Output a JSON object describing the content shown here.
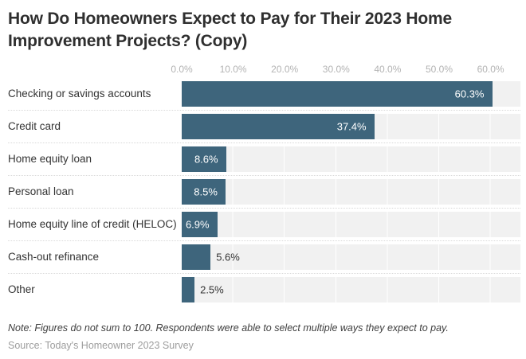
{
  "note": "Note: Figures do not sum to 100. Respondents were able to select multiple ways they expect to pay.",
  "source": "Source: Today's Homeowner 2023 Survey",
  "colors": {
    "bar": "#3e657c",
    "strip_background": "#f1f1f1",
    "gridline": "#ffffff",
    "title_text": "#2f2f2f",
    "axis_tick_text": "#b3b3b3",
    "category_text": "#333333",
    "value_label_inside": "#ffffff",
    "value_label_outside": "#333333",
    "note_text": "#3e3e3e",
    "source_text": "#9d9d9d"
  },
  "chart_data": {
    "type": "bar",
    "orientation": "horizontal",
    "title": "How Do Homeowners Expect to Pay for Their 2023 Home Improvement Projects? (Copy)",
    "categories": [
      "Checking or savings accounts",
      "Credit card",
      "Home equity loan",
      "Personal loan",
      "Home equity line of credit (HELOC)",
      "Cash-out refinance",
      "Other"
    ],
    "values": [
      60.3,
      37.4,
      8.6,
      8.5,
      6.9,
      5.6,
      2.5
    ],
    "value_labels": [
      "60.3%",
      "37.4%",
      "8.6%",
      "8.5%",
      "6.9%",
      "5.6%",
      "2.5%"
    ],
    "x_ticks": [
      "0.0%",
      "10.0%",
      "20.0%",
      "30.0%",
      "40.0%",
      "50.0%",
      "60.0%"
    ],
    "xlim": [
      0,
      65.8
    ],
    "xlabel": "",
    "ylabel": "",
    "grid": "vertical-gridlines-on-row-strips",
    "legend": "none"
  }
}
